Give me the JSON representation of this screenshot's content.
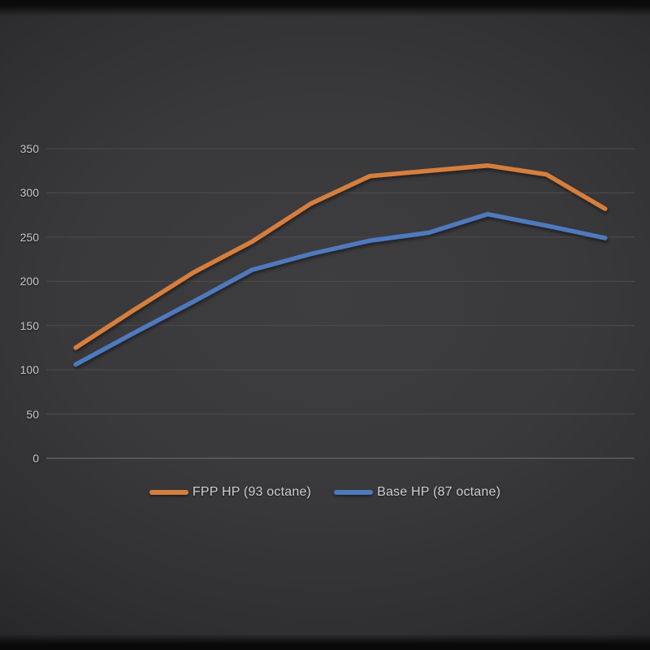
{
  "chart_data": {
    "type": "line",
    "title": "",
    "xlabel": "",
    "ylabel": "",
    "ylim": [
      0,
      350
    ],
    "y_ticks": [
      0,
      50,
      100,
      150,
      200,
      250,
      300,
      350
    ],
    "x_tick_labels_visible": false,
    "point_count": 10,
    "grid": "horizontal",
    "legend_position": "bottom-center",
    "series": [
      {
        "name": "FPP HP (93 octane)",
        "color": "#d67e3e",
        "values": [
          125,
          168,
          210,
          245,
          288,
          319,
          325,
          331,
          321,
          282
        ]
      },
      {
        "name": "Base HP (87 octane)",
        "color": "#4f79bd",
        "values": [
          106,
          142,
          177,
          213,
          231,
          246,
          255,
          276,
          263,
          249
        ]
      }
    ]
  },
  "colors": {
    "background_center": "#3e3e41",
    "background_edge": "#151517",
    "gridline": "#4b4b4d",
    "axis_line": "#5e5e60",
    "tick_label": "#c6c6c8",
    "legend_text": "#cdced0"
  }
}
